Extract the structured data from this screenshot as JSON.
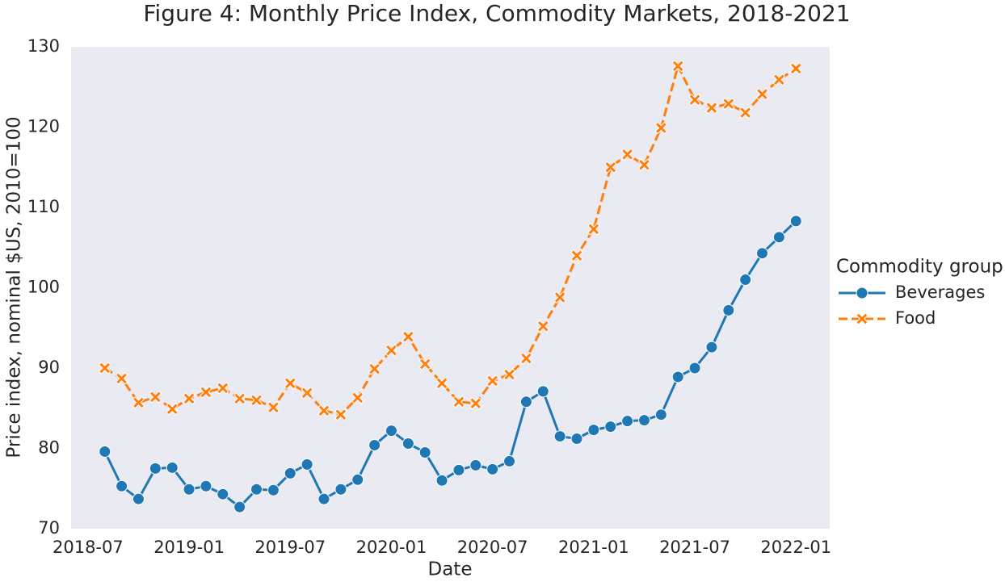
{
  "chart_data": {
    "type": "line",
    "title": "Figure 4: Monthly Price Index, Commodity Markets, 2018-2021",
    "xlabel": "Date",
    "ylabel": "Price index, nominal $US, 2010=100",
    "legend_title": "Commodity group",
    "legend": "right-outside",
    "grid": false,
    "background": "#eaeaf2",
    "x": [
      "2018-08",
      "2018-09",
      "2018-10",
      "2018-11",
      "2018-12",
      "2019-01",
      "2019-02",
      "2019-03",
      "2019-04",
      "2019-05",
      "2019-06",
      "2019-07",
      "2019-08",
      "2019-09",
      "2019-10",
      "2019-11",
      "2019-12",
      "2020-01",
      "2020-02",
      "2020-03",
      "2020-04",
      "2020-05",
      "2020-06",
      "2020-07",
      "2020-08",
      "2020-09",
      "2020-10",
      "2020-11",
      "2020-12",
      "2021-01",
      "2021-02",
      "2021-03",
      "2021-04",
      "2021-05",
      "2021-06",
      "2021-07",
      "2021-08",
      "2021-09",
      "2021-10",
      "2021-11",
      "2021-12",
      "2022-01"
    ],
    "series": [
      {
        "name": "Beverages",
        "color": "#1f77b4",
        "marker": "o",
        "linestyle": "solid",
        "values": [
          79.6,
          75.3,
          73.7,
          77.5,
          77.6,
          74.9,
          75.3,
          74.3,
          72.7,
          74.9,
          74.8,
          76.9,
          78.0,
          73.7,
          74.9,
          76.1,
          80.4,
          82.2,
          80.6,
          79.5,
          76.0,
          77.3,
          77.9,
          77.4,
          78.4,
          85.8,
          87.1,
          81.5,
          81.2,
          82.3,
          82.7,
          83.4,
          83.5,
          84.2,
          88.9,
          90.0,
          92.6,
          97.2,
          101.0,
          104.3,
          106.3,
          108.3
        ]
      },
      {
        "name": "Food",
        "color": "#ff7f0e",
        "marker": "X",
        "linestyle": "dashed",
        "values": [
          90.0,
          88.7,
          85.7,
          86.4,
          84.9,
          86.2,
          87.0,
          87.5,
          86.2,
          86.0,
          85.1,
          88.1,
          86.9,
          84.7,
          84.2,
          86.3,
          89.9,
          92.2,
          93.9,
          90.5,
          88.1,
          85.8,
          85.6,
          88.4,
          89.2,
          91.2,
          95.2,
          98.8,
          104.0,
          107.3,
          115.0,
          116.6,
          115.3,
          119.9,
          127.6,
          123.4,
          122.4,
          122.9,
          121.8,
          124.1,
          125.9,
          127.3
        ]
      }
    ],
    "xlim": [
      "2018-06",
      "2022-03"
    ],
    "xticks": [
      "2018-07",
      "2019-01",
      "2019-07",
      "2020-01",
      "2020-07",
      "2021-01",
      "2021-07",
      "2022-01"
    ],
    "ylim": [
      70,
      130
    ],
    "yticks": [
      70,
      80,
      90,
      100,
      110,
      120,
      130
    ]
  }
}
